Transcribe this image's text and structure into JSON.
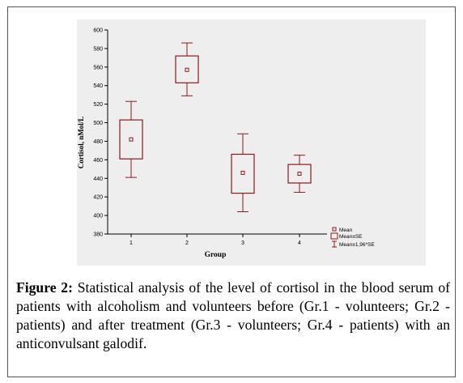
{
  "chart_data": {
    "type": "box",
    "xlabel": "Group",
    "ylabel": "Cortisol, nMol/L",
    "categories": [
      "1",
      "2",
      "3",
      "4"
    ],
    "ylim": [
      380,
      600
    ],
    "yticks": [
      380,
      400,
      420,
      440,
      460,
      480,
      500,
      520,
      540,
      560,
      580,
      600
    ],
    "series": [
      {
        "name": "Mean",
        "values": [
          482,
          557,
          446,
          445
        ]
      },
      {
        "name": "Mean±SE",
        "low": [
          461,
          543,
          424,
          435
        ],
        "high": [
          503,
          572,
          466,
          455
        ]
      },
      {
        "name": "Mean±1,96*SE",
        "low": [
          441,
          529,
          404,
          425
        ],
        "high": [
          523,
          586,
          488,
          465
        ]
      }
    ],
    "legend_position": "bottom-right",
    "grid": false
  },
  "colors": {
    "series": "#8b1a1a",
    "axis": "#000000",
    "plot_background": "#eeeeee"
  },
  "caption": {
    "label": "Figure 2:",
    "text": " Statistical analysis of the level of cortisol in the blood serum of patients with alcoholism and volunteers before (Gr.1 - volunteers; Gr.2 - patients) and after treatment (Gr.3 - volunteers; Gr.4 - patients) with an anticonvulsant galodif."
  }
}
